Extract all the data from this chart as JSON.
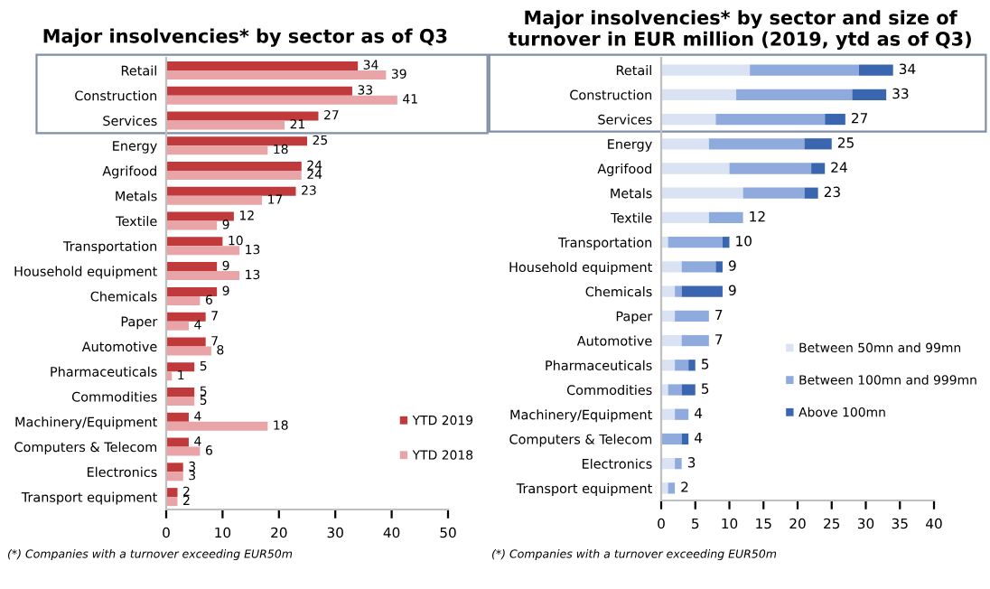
{
  "chart_data": [
    {
      "type": "bar",
      "orientation": "horizontal",
      "title": "Major insolvencies* by sector as of Q3",
      "categories": [
        "Retail",
        "Construction",
        "Services",
        "Energy",
        "Agrifood",
        "Metals",
        "Textile",
        "Transportation",
        "Household equipment",
        "Chemicals",
        "Paper",
        "Automotive",
        "Pharmaceuticals",
        "Commodities",
        "Machinery/Equipment",
        "Computers & Telecom",
        "Electronics",
        "Transport equipment"
      ],
      "series": [
        {
          "name": "YTD 2019",
          "color": "#c0393b",
          "values": [
            34,
            33,
            27,
            25,
            24,
            23,
            12,
            10,
            9,
            9,
            7,
            7,
            5,
            5,
            4,
            4,
            3,
            2
          ]
        },
        {
          "name": "YTD 2018",
          "color": "#e8a4a6",
          "values": [
            39,
            41,
            21,
            18,
            24,
            17,
            9,
            13,
            13,
            6,
            4,
            8,
            1,
            5,
            18,
            6,
            3,
            2
          ]
        }
      ],
      "xlim": [
        0,
        50
      ],
      "xticks": [
        0,
        10,
        20,
        30,
        40,
        50
      ],
      "data_labels": true,
      "grid": false,
      "legend": "bottom right",
      "annotations": [
        "(*) Companies with a turnover exceeding EUR50m"
      ]
    },
    {
      "type": "bar",
      "orientation": "horizontal",
      "stacked": true,
      "title": "Major insolvencies* by sector and size of turnover in EUR million (2019, ytd as of Q3)",
      "categories": [
        "Retail",
        "Construction",
        "Services",
        "Energy",
        "Agrifood",
        "Metals",
        "Textile",
        "Transportation",
        "Household equipment",
        "Chemicals",
        "Paper",
        "Automotive",
        "Pharmaceuticals",
        "Commodities",
        "Machinery/Equipment",
        "Computers & Telecom",
        "Electronics",
        "Transport equipment"
      ],
      "series": [
        {
          "name": "Between 50mn and 99mn",
          "color": "#dae3f3",
          "values": [
            13,
            11,
            8,
            7,
            10,
            12,
            7,
            1,
            3,
            2,
            2,
            3,
            2,
            1,
            2,
            0,
            2,
            1
          ]
        },
        {
          "name": "Between 100mn and 999mn",
          "color": "#8faadc",
          "values": [
            16,
            17,
            16,
            14,
            12,
            9,
            5,
            8,
            5,
            1,
            5,
            4,
            2,
            2,
            2,
            3,
            1,
            1
          ]
        },
        {
          "name": "Above 100mn",
          "color": "#3a66b0",
          "values": [
            5,
            5,
            3,
            4,
            2,
            2,
            0,
            1,
            1,
            6,
            0,
            0,
            1,
            2,
            0,
            1,
            0,
            0
          ]
        }
      ],
      "totals": [
        "34",
        "33",
        "27",
        "25",
        "24",
        "23",
        "12",
        "10",
        "9",
        "9",
        "7",
        "7",
        "5",
        "5",
        "4",
        "4",
        "3",
        "2"
      ],
      "xlim": [
        0,
        40
      ],
      "xticks": [
        0,
        5,
        10,
        15,
        20,
        25,
        30,
        35,
        40
      ],
      "grid": false,
      "legend": "right",
      "annotations": [
        "(*) Companies with a turnover exceeding EUR50m"
      ]
    }
  ]
}
